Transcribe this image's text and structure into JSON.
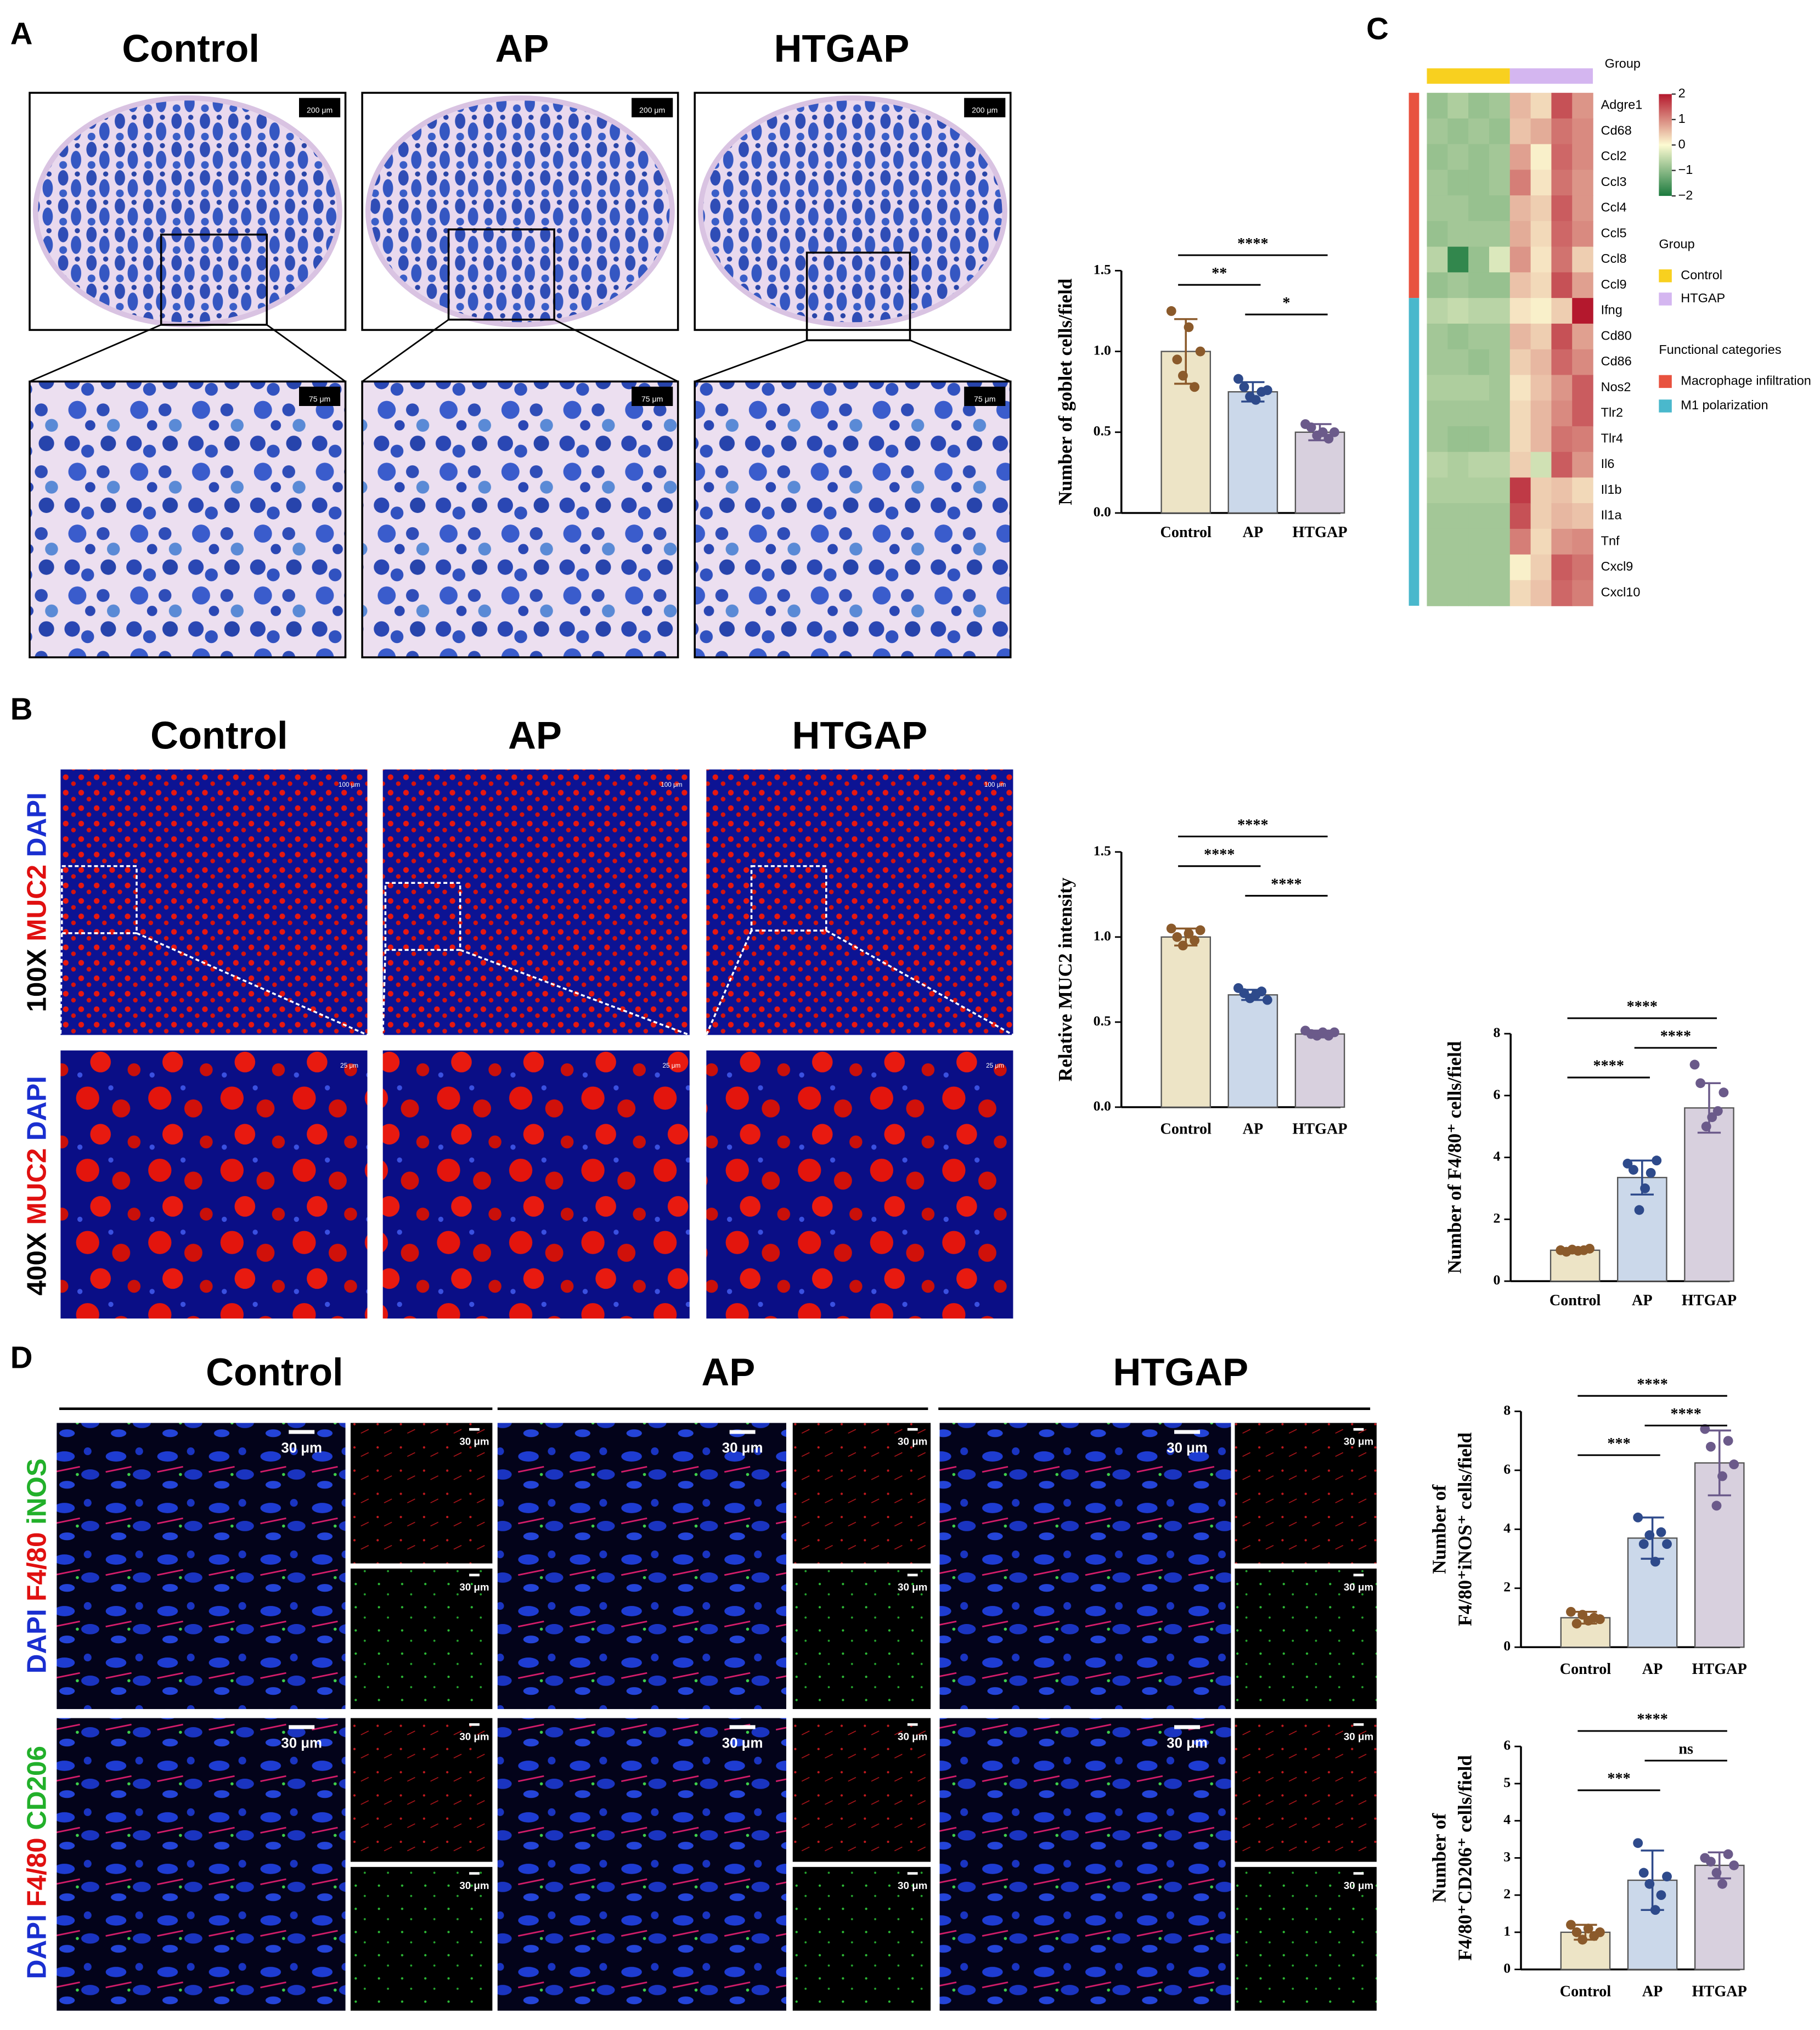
{
  "panel_labels": [
    "A",
    "B",
    "C",
    "D"
  ],
  "groups": [
    "Control",
    "AP",
    "HTGAP"
  ],
  "panel_b": {
    "magnifications": [
      "100X",
      "400X"
    ],
    "stains": [
      "DAPI",
      "MUC2"
    ]
  },
  "panel_d": {
    "stains_row1": [
      "DAPI",
      "F4/80",
      "iNOS"
    ],
    "stains_row2": [
      "DAPI",
      "F4/80",
      "CD206"
    ]
  },
  "scale_bars": {
    "a_low": "200 μm",
    "a_high": "75 μm",
    "b_low": "100 μm",
    "b_high": "25 μm",
    "d": "30 μm"
  },
  "chart_data": [
    {
      "type": "bar",
      "ylabel": [
        "Number of goblet cells/field"
      ],
      "categories": [
        "Control",
        "AP",
        "HTGAP"
      ],
      "values": [
        1.0,
        0.75,
        0.5
      ],
      "errors": [
        0.2,
        0.06,
        0.05
      ],
      "colors": [
        "#ede4c6",
        "#cbd8ea",
        "#d8d0de"
      ],
      "point_colors": [
        "#8b5a2b",
        "#2e4a8b",
        "#6b5a8a"
      ],
      "points": [
        [
          1.25,
          0.95,
          0.85,
          1.15,
          0.78,
          1.0
        ],
        [
          0.83,
          0.78,
          0.72,
          0.7,
          0.75,
          0.76
        ],
        [
          0.55,
          0.53,
          0.48,
          0.5,
          0.46,
          0.5
        ]
      ],
      "ylim": [
        0,
        1.5
      ],
      "yticks": [
        {
          "value": 0,
          "label": "0.0"
        },
        0.5,
        {
          "value": 1,
          "label": "1.0"
        },
        1.5
      ],
      "significance": [
        {
          "pair": [
            "Control",
            "HTGAP"
          ],
          "label": "****"
        },
        {
          "pair": [
            "Control",
            "AP"
          ],
          "label": "**"
        },
        {
          "pair": [
            "AP",
            "HTGAP"
          ],
          "label": "*"
        }
      ]
    },
    {
      "type": "heatmap",
      "group_title": "Group",
      "category_title": "Functional categories",
      "column_groups": [
        {
          "name": "Control",
          "color": "#f8d01f",
          "columns": 4
        },
        {
          "name": "HTGAP",
          "color": "#d4b6f0",
          "columns": 4
        }
      ],
      "row_groups": [
        {
          "name": "Macrophage infiltration",
          "color": "#e8523f",
          "rows": 8
        },
        {
          "name": "M1 polarization",
          "color": "#4ab8cc",
          "rows": 12
        }
      ],
      "rows": [
        "Adgre1",
        "Cd68",
        "Ccl2",
        "Ccl3",
        "Ccl4",
        "Ccl5",
        "Ccl8",
        "Ccl9",
        "Ifng",
        "Cd80",
        "Cd86",
        "Nos2",
        "Tlr2",
        "Tlr4",
        "Il6",
        "Il1b",
        "Il1a",
        "Tnf",
        "Cxcl9",
        "Cxcl10"
      ],
      "values": [
        [
          -0.9,
          -0.7,
          -0.9,
          -0.8,
          0.6,
          0.3,
          1.5,
          0.9
        ],
        [
          -0.8,
          -0.9,
          -0.8,
          -0.9,
          0.5,
          0.7,
          1.2,
          1.0
        ],
        [
          -0.9,
          -0.8,
          -0.9,
          -0.8,
          0.8,
          0.1,
          1.3,
          1.0
        ],
        [
          -0.8,
          -0.9,
          -0.9,
          -0.8,
          1.1,
          0.2,
          1.2,
          0.9
        ],
        [
          -0.8,
          -0.8,
          -0.9,
          -0.9,
          0.6,
          0.4,
          1.4,
          0.9
        ],
        [
          -0.9,
          -0.8,
          -0.8,
          -0.8,
          0.7,
          0.3,
          1.3,
          1.0
        ],
        [
          -0.6,
          -1.8,
          -0.9,
          -0.3,
          0.9,
          0.2,
          1.2,
          0.4
        ],
        [
          -0.9,
          -0.8,
          -0.9,
          -0.9,
          0.5,
          0.3,
          1.5,
          0.8
        ],
        [
          -0.6,
          -0.5,
          -0.6,
          -0.6,
          0.2,
          0.1,
          0.4,
          2.0
        ],
        [
          -0.8,
          -0.9,
          -0.8,
          -0.8,
          0.6,
          0.4,
          1.5,
          0.8
        ],
        [
          -0.8,
          -0.8,
          -0.9,
          -0.8,
          0.4,
          0.6,
          1.3,
          1.0
        ],
        [
          -0.7,
          -0.7,
          -0.7,
          -0.8,
          0.2,
          0.5,
          0.9,
          1.4
        ],
        [
          -0.8,
          -0.8,
          -0.8,
          -0.8,
          0.3,
          0.6,
          1.0,
          1.4
        ],
        [
          -0.8,
          -0.9,
          -0.9,
          -0.8,
          0.3,
          0.6,
          1.2,
          1.1
        ],
        [
          -0.6,
          -0.7,
          -0.6,
          -0.6,
          0.4,
          -0.4,
          1.4,
          0.9
        ],
        [
          -0.7,
          -0.7,
          -0.7,
          -0.7,
          1.7,
          0.4,
          0.5,
          0.3
        ],
        [
          -0.8,
          -0.8,
          -0.8,
          -0.8,
          1.5,
          0.4,
          0.6,
          0.5
        ],
        [
          -0.8,
          -0.8,
          -0.8,
          -0.8,
          1.1,
          0.3,
          0.9,
          1.0
        ],
        [
          -0.8,
          -0.8,
          -0.8,
          -0.8,
          0.1,
          0.4,
          1.4,
          1.2
        ],
        [
          -0.8,
          -0.8,
          -0.8,
          -0.8,
          0.3,
          0.5,
          1.3,
          1.1
        ]
      ],
      "zlim": [
        -2,
        2
      ],
      "zticks": [
        2,
        1,
        0,
        {
          "value": -1,
          "label": "−1"
        },
        {
          "value": -2,
          "label": "−2"
        }
      ],
      "colors": [
        "#1b7a3e",
        "#fdfbd2",
        "#b4182d"
      ]
    },
    {
      "type": "bar",
      "ylabel": [
        "Relative MUC2 intensity"
      ],
      "categories": [
        "Control",
        "AP",
        "HTGAP"
      ],
      "values": [
        1.0,
        0.66,
        0.43
      ],
      "errors": [
        0.05,
        0.03,
        0.02
      ],
      "colors": [
        "#ede4c6",
        "#cbd8ea",
        "#d8d0de"
      ],
      "point_colors": [
        "#8b5a2b",
        "#2e4a8b",
        "#6b5a8a"
      ],
      "points": [
        [
          1.05,
          1.0,
          0.95,
          1.02,
          0.98,
          1.04
        ],
        [
          0.7,
          0.67,
          0.64,
          0.66,
          0.68,
          0.63
        ],
        [
          0.45,
          0.43,
          0.42,
          0.44,
          0.42,
          0.44
        ]
      ],
      "ylim": [
        0,
        1.5
      ],
      "yticks": [
        {
          "value": 0,
          "label": "0.0"
        },
        0.5,
        {
          "value": 1,
          "label": "1.0"
        },
        1.5
      ],
      "significance": [
        {
          "pair": [
            "Control",
            "HTGAP"
          ],
          "label": "****"
        },
        {
          "pair": [
            "Control",
            "AP"
          ],
          "label": "****"
        },
        {
          "pair": [
            "AP",
            "HTGAP"
          ],
          "label": "****"
        }
      ]
    },
    {
      "type": "bar",
      "ylabel": [
        "Number of F4/80⁺ cells/field"
      ],
      "categories": [
        "Control",
        "AP",
        "HTGAP"
      ],
      "values": [
        1.0,
        3.35,
        5.6
      ],
      "errors": [
        0.05,
        0.55,
        0.8
      ],
      "colors": [
        "#ede4c6",
        "#cbd8ea",
        "#d8d0de"
      ],
      "point_colors": [
        "#8b5a2b",
        "#2e4a8b",
        "#6b5a8a"
      ],
      "points": [
        [
          1.0,
          0.95,
          1.02,
          0.98,
          1.0,
          1.05
        ],
        [
          3.8,
          3.6,
          2.3,
          3.0,
          3.5,
          3.9
        ],
        [
          7.0,
          6.4,
          5.0,
          5.3,
          5.5,
          6.1
        ]
      ],
      "ylim": [
        0,
        8
      ],
      "yticks": [
        0,
        2,
        4,
        6,
        8
      ],
      "significance": [
        {
          "pair": [
            "Control",
            "HTGAP"
          ],
          "label": "****"
        },
        {
          "pair": [
            "AP",
            "HTGAP"
          ],
          "label": "****"
        },
        {
          "pair": [
            "Control",
            "AP"
          ],
          "label": "****"
        }
      ]
    },
    {
      "type": "bar",
      "ylabel": [
        "Number of",
        "F4/80⁺iNOS⁺ cells/field"
      ],
      "categories": [
        "Control",
        "AP",
        "HTGAP"
      ],
      "values": [
        1.0,
        3.7,
        6.25
      ],
      "errors": [
        0.2,
        0.7,
        1.1
      ],
      "colors": [
        "#ede4c6",
        "#cbd8ea",
        "#d8d0de"
      ],
      "point_colors": [
        "#8b5a2b",
        "#2e4a8b",
        "#6b5a8a"
      ],
      "points": [
        [
          1.2,
          0.8,
          1.1,
          0.9,
          1.0,
          0.95
        ],
        [
          4.4,
          3.5,
          3.8,
          2.9,
          3.9,
          3.5
        ],
        [
          7.4,
          6.8,
          4.8,
          5.8,
          7.0,
          6.2
        ]
      ],
      "ylim": [
        0,
        8
      ],
      "yticks": [
        0,
        2,
        4,
        6,
        8
      ],
      "significance": [
        {
          "pair": [
            "Control",
            "HTGAP"
          ],
          "label": "****"
        },
        {
          "pair": [
            "AP",
            "HTGAP"
          ],
          "label": "****"
        },
        {
          "pair": [
            "Control",
            "AP"
          ],
          "label": "***"
        }
      ]
    },
    {
      "type": "bar",
      "ylabel": [
        "Number of",
        "F4/80⁺CD206⁺ cells/field"
      ],
      "categories": [
        "Control",
        "AP",
        "HTGAP"
      ],
      "values": [
        1.0,
        2.4,
        2.8
      ],
      "errors": [
        0.2,
        0.8,
        0.35
      ],
      "colors": [
        "#ede4c6",
        "#cbd8ea",
        "#d8d0de"
      ],
      "point_colors": [
        "#8b5a2b",
        "#2e4a8b",
        "#6b5a8a"
      ],
      "points": [
        [
          1.2,
          1.0,
          0.8,
          1.1,
          0.9,
          1.0
        ],
        [
          3.4,
          2.6,
          2.3,
          1.6,
          2.0,
          2.5
        ],
        [
          3.0,
          2.9,
          2.6,
          2.3,
          3.1,
          2.8
        ]
      ],
      "ylim": [
        0,
        6
      ],
      "yticks": [
        0,
        1,
        2,
        3,
        4,
        5,
        6
      ],
      "significance": [
        {
          "pair": [
            "Control",
            "HTGAP"
          ],
          "label": "****"
        },
        {
          "pair": [
            "AP",
            "HTGAP"
          ],
          "label": "ns"
        },
        {
          "pair": [
            "Control",
            "AP"
          ],
          "label": "***"
        }
      ]
    }
  ]
}
